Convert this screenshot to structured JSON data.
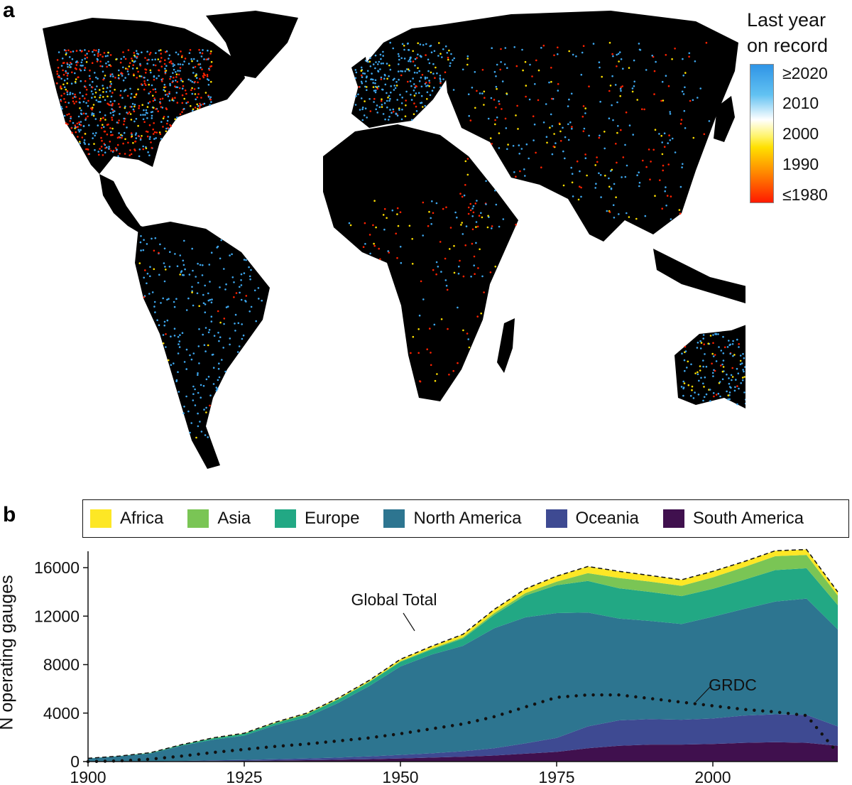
{
  "panels": {
    "a": "a",
    "b": "b"
  },
  "map": {
    "colorbar_title_line1": "Last year",
    "colorbar_title_line2": "on record",
    "colorbar_ticks": [
      "≥2020",
      "2010",
      "2000",
      "1990",
      "≤1980"
    ],
    "colors": {
      "ocean": "#ffffff",
      "land": "#000000",
      "recent": "#3ea7ee",
      "mid": "#ffe000",
      "old": "#ff2200"
    }
  },
  "chart_data": {
    "type": "area",
    "stacked": true,
    "xlabel": "",
    "ylabel": "N operating gauges",
    "xlim": [
      1900,
      2020
    ],
    "ylim": [
      0,
      17000
    ],
    "x_ticks": [
      1900,
      1925,
      1950,
      1975,
      2000
    ],
    "y_ticks": [
      0,
      4000,
      8000,
      12000,
      16000
    ],
    "x": [
      1900,
      1905,
      1910,
      1915,
      1920,
      1925,
      1930,
      1935,
      1940,
      1945,
      1950,
      1955,
      1960,
      1965,
      1970,
      1975,
      1980,
      1985,
      1990,
      1995,
      2000,
      2005,
      2010,
      2015,
      2020
    ],
    "series": [
      {
        "name": "South America",
        "color": "#40104e",
        "values": [
          0,
          0,
          10,
          20,
          40,
          60,
          90,
          120,
          150,
          200,
          260,
          330,
          400,
          500,
          650,
          800,
          1100,
          1300,
          1400,
          1400,
          1450,
          1550,
          1600,
          1550,
          1300
        ]
      },
      {
        "name": "Oceania",
        "color": "#3e4a92",
        "values": [
          0,
          0,
          10,
          30,
          60,
          80,
          110,
          140,
          180,
          230,
          290,
          350,
          450,
          600,
          850,
          1150,
          1800,
          2100,
          2100,
          2050,
          2100,
          2250,
          2300,
          2300,
          1600
        ]
      },
      {
        "name": "North America",
        "color": "#2d7590",
        "values": [
          250,
          420,
          650,
          1250,
          1700,
          2000,
          2800,
          3400,
          4500,
          5800,
          7300,
          8150,
          8700,
          9900,
          10400,
          10300,
          9400,
          8400,
          8100,
          7900,
          8400,
          8800,
          9300,
          9600,
          8000
        ]
      },
      {
        "name": "Europe",
        "color": "#22a884",
        "values": [
          20,
          30,
          50,
          80,
          120,
          150,
          180,
          240,
          280,
          320,
          380,
          420,
          600,
          1100,
          1800,
          2300,
          2600,
          2500,
          2400,
          2300,
          2300,
          2400,
          2600,
          2500,
          2000
        ]
      },
      {
        "name": "Asia",
        "color": "#7ac555",
        "values": [
          0,
          0,
          5,
          10,
          15,
          20,
          25,
          35,
          40,
          50,
          60,
          70,
          100,
          150,
          200,
          300,
          650,
          850,
          850,
          850,
          950,
          1050,
          1150,
          1100,
          800
        ]
      },
      {
        "name": "Africa",
        "color": "#fde725",
        "values": [
          0,
          0,
          5,
          10,
          20,
          30,
          50,
          60,
          80,
          100,
          150,
          200,
          250,
          300,
          350,
          450,
          550,
          550,
          500,
          500,
          500,
          450,
          450,
          450,
          300
        ]
      }
    ],
    "global_total": [
      270,
      450,
      730,
      1400,
      1955,
      2340,
      3255,
      3995,
      5230,
      6700,
      8440,
      9520,
      10500,
      12550,
      14250,
      15300,
      16100,
      15700,
      15350,
      15000,
      15700,
      16500,
      17400,
      17500,
      14000
    ],
    "grdc": {
      "name": "GRDC",
      "x": [
        1900,
        1905,
        1910,
        1915,
        1920,
        1925,
        1930,
        1935,
        1940,
        1945,
        1950,
        1955,
        1960,
        1965,
        1970,
        1975,
        1980,
        1985,
        1990,
        1995,
        2000,
        2005,
        2010,
        2015,
        2020
      ],
      "values": [
        0,
        50,
        200,
        450,
        750,
        1000,
        1250,
        1450,
        1700,
        1950,
        2300,
        2700,
        3100,
        3700,
        4500,
        5300,
        5500,
        5500,
        5200,
        4900,
        4600,
        4300,
        4100,
        3800,
        700
      ]
    },
    "annotations": [
      "Global Total",
      "GRDC"
    ],
    "legend_position": "top"
  }
}
